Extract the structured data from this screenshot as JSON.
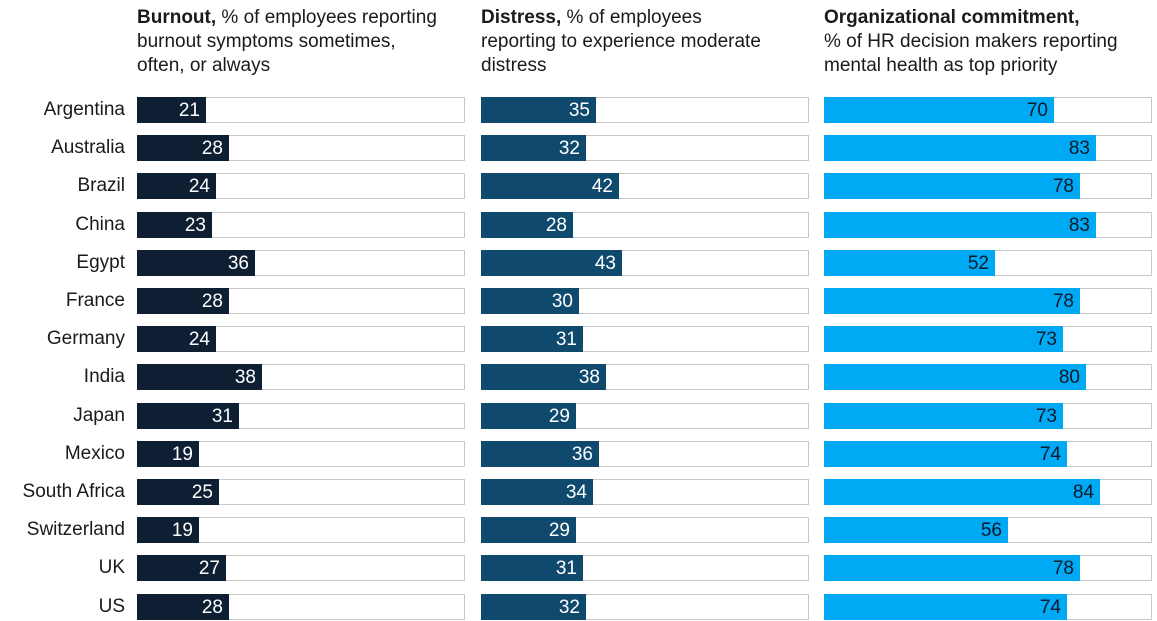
{
  "panels": [
    {
      "title_bold": "Burnout,",
      "title_rest": " % of employees reporting burnout symptoms sometimes, often, or always",
      "color": "#0f1f33",
      "label_color": "#ffffff"
    },
    {
      "title_bold": "Distress,",
      "title_rest": " % of employees reporting to experience moderate distress",
      "color": "#0f4a6e",
      "label_color": "#ffffff"
    },
    {
      "title_bold": "Organizational commitment,",
      "title_rest": "% of HR decision makers reporting mental health as top priority",
      "color": "#00a9f4",
      "label_color": "#0b1a2a"
    }
  ],
  "chart_data": {
    "type": "bar",
    "orientation": "horizontal",
    "categories": [
      "Argentina",
      "Australia",
      "Brazil",
      "China",
      "Egypt",
      "France",
      "Germany",
      "India",
      "Japan",
      "Mexico",
      "South Africa",
      "Switzerland",
      "UK",
      "US"
    ],
    "series": [
      {
        "name": "Burnout",
        "values": [
          21,
          28,
          24,
          23,
          36,
          28,
          24,
          38,
          31,
          19,
          25,
          19,
          27,
          28
        ]
      },
      {
        "name": "Distress",
        "values": [
          35,
          32,
          42,
          28,
          43,
          30,
          31,
          38,
          29,
          36,
          34,
          29,
          31,
          32
        ]
      },
      {
        "name": "Organizational commitment",
        "values": [
          70,
          83,
          78,
          83,
          52,
          78,
          73,
          80,
          73,
          74,
          84,
          56,
          78,
          74
        ]
      }
    ],
    "xlim": [
      0,
      100
    ],
    "grid": false,
    "legend": "none"
  }
}
